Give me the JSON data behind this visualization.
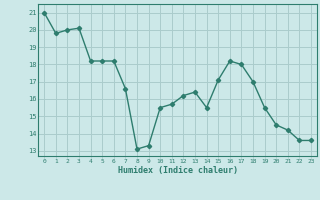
{
  "x": [
    0,
    1,
    2,
    3,
    4,
    5,
    6,
    7,
    8,
    9,
    10,
    11,
    12,
    13,
    14,
    15,
    16,
    17,
    18,
    19,
    20,
    21,
    22,
    23
  ],
  "y": [
    21.0,
    19.8,
    20.0,
    20.1,
    18.2,
    18.2,
    18.2,
    16.6,
    13.1,
    13.3,
    15.5,
    15.7,
    16.2,
    16.4,
    15.5,
    17.1,
    18.2,
    18.0,
    17.0,
    15.5,
    14.5,
    14.2,
    13.6,
    13.6
  ],
  "line_color": "#2e7d6e",
  "marker": "D",
  "marker_size": 2.2,
  "bg_color": "#cce8e8",
  "grid_color": "#aacccc",
  "xlabel": "Humidex (Indice chaleur)",
  "ylabel_ticks": [
    13,
    14,
    15,
    16,
    17,
    18,
    19,
    20,
    21
  ],
  "xlim": [
    -0.5,
    23.5
  ],
  "ylim": [
    12.7,
    21.5
  ]
}
